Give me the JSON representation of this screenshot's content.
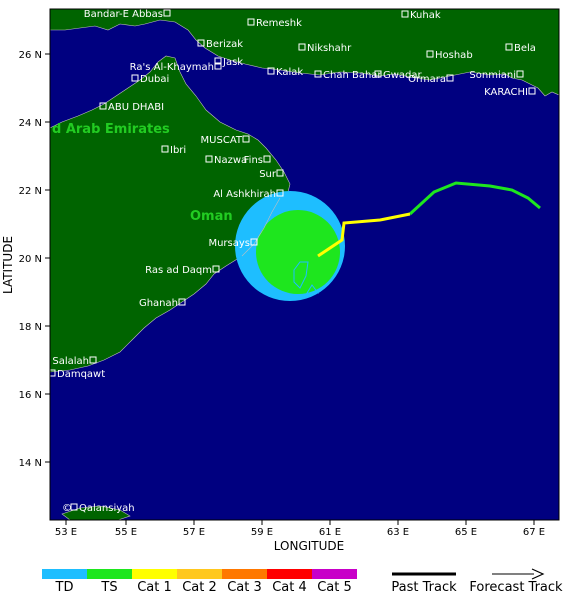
{
  "axes": {
    "xlabel": "LONGITUDE",
    "ylabel": "LATITUDE",
    "x_ticks": [
      "53 E",
      "55 E",
      "57 E",
      "59 E",
      "61 E",
      "63 E",
      "65 E",
      "67 E"
    ],
    "y_ticks": [
      "26 N",
      "24 N",
      "22 N",
      "20 N",
      "18 N",
      "16 N",
      "14 N"
    ]
  },
  "countries": [
    "d Arab Emirates",
    "Oman"
  ],
  "cities": [
    {
      "name": "Bandar-E Abbas",
      "label_side": "left"
    },
    {
      "name": "Remeshk",
      "label_side": "right"
    },
    {
      "name": "Kuhak",
      "label_side": "right"
    },
    {
      "name": "Berizak",
      "label_side": "right"
    },
    {
      "name": "Nikshahr",
      "label_side": "right"
    },
    {
      "name": "Hoshab",
      "label_side": "right"
    },
    {
      "name": "Bela",
      "label_side": "right"
    },
    {
      "name": "Jask",
      "label_side": "right"
    },
    {
      "name": "Ra's Al-Khaymah",
      "label_side": "left"
    },
    {
      "name": "Kalak",
      "label_side": "right"
    },
    {
      "name": "Chah Bahar",
      "label_side": "right"
    },
    {
      "name": "Gwadar",
      "label_side": "right"
    },
    {
      "name": "Sonmiani",
      "label_side": "left"
    },
    {
      "name": "Dubai",
      "label_side": "right"
    },
    {
      "name": "Ormara",
      "label_side": "left"
    },
    {
      "name": "KARACHI",
      "label_side": "left"
    },
    {
      "name": "ABU DHABI",
      "label_side": "right"
    },
    {
      "name": "MUSCAT",
      "label_side": "left"
    },
    {
      "name": "Ibri",
      "label_side": "right"
    },
    {
      "name": "Nazwa",
      "label_side": "right"
    },
    {
      "name": "Fins",
      "label_side": "left"
    },
    {
      "name": "Sur",
      "label_side": "left"
    },
    {
      "name": "Al Ashkhirah",
      "label_side": "left"
    },
    {
      "name": "Mursays",
      "label_side": "left"
    },
    {
      "name": "Ras ad Daqm",
      "label_side": "left"
    },
    {
      "name": "Ghanah",
      "label_side": "left"
    },
    {
      "name": "Salalah",
      "label_side": "left"
    },
    {
      "name": "Damqawt",
      "label_side": "right"
    },
    {
      "name": "Qalansiyah",
      "label_side": "right"
    }
  ],
  "credit": "©",
  "legend": {
    "categories": [
      {
        "label": "TD",
        "color": "#1ebeff"
      },
      {
        "label": "TS",
        "color": "#1ee61e"
      },
      {
        "label": "Cat 1",
        "color": "#ffff00"
      },
      {
        "label": "Cat 2",
        "color": "#ffc81e"
      },
      {
        "label": "Cat 3",
        "color": "#ff7800"
      },
      {
        "label": "Cat 4",
        "color": "#ff0000"
      },
      {
        "label": "Cat 5",
        "color": "#c800c8"
      }
    ],
    "past_track_label": "Past Track",
    "forecast_track_label": "Forecast Track"
  },
  "colors": {
    "ocean": "#000080",
    "land": "#006400",
    "border": "#c0c0c0",
    "ts_track": "#1ee61e",
    "cat1_track": "#ffff00"
  }
}
